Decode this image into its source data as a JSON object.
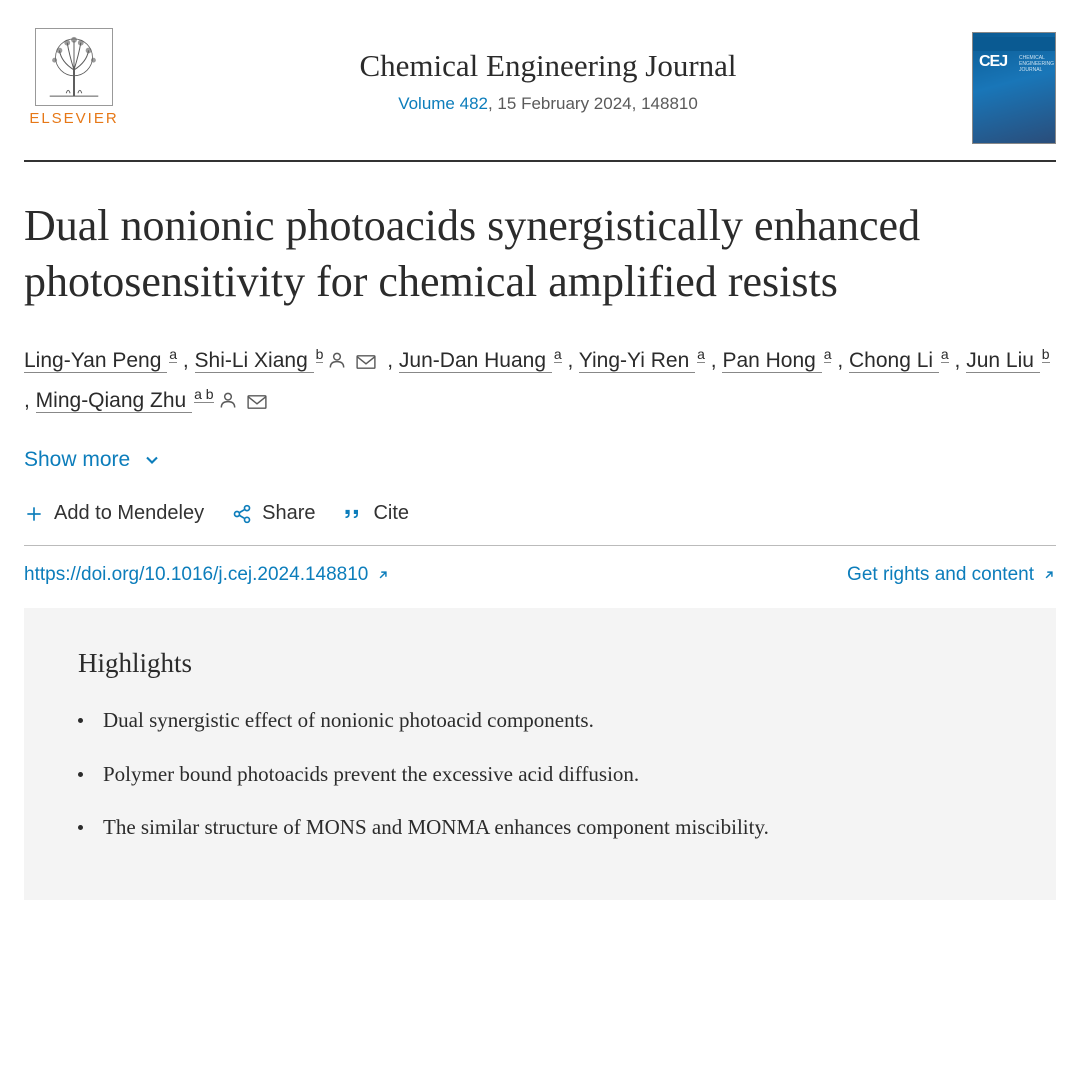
{
  "publisher": {
    "name": "ELSEVIER"
  },
  "journal": {
    "name": "Chemical Engineering Journal",
    "volume_label": "Volume 482",
    "date_article": ", 15 February 2024, 148810",
    "cover_code": "CEJ",
    "cover_sub": "CHEMICAL\nENGINEERING\nJOURNAL"
  },
  "article": {
    "title": "Dual nonionic photoacids synergistically enhanced photosensitivity for chemical amplified resists",
    "doi_url": "https://doi.org/10.1016/j.cej.2024.148810"
  },
  "authors": [
    {
      "name": "Ling-Yan Peng",
      "affil": "a",
      "person_icon": false,
      "mail_icon": false,
      "trailing_comma": true
    },
    {
      "name": "Shi-Li Xiang",
      "affil": "b",
      "person_icon": true,
      "mail_icon": true,
      "trailing_comma": true
    },
    {
      "name": "Jun-Dan Huang",
      "affil": "a",
      "person_icon": false,
      "mail_icon": false,
      "trailing_comma": true
    },
    {
      "name": "Ying-Yi Ren",
      "affil": "a",
      "person_icon": false,
      "mail_icon": false,
      "trailing_comma": true
    },
    {
      "name": "Pan Hong",
      "affil": "a",
      "person_icon": false,
      "mail_icon": false,
      "trailing_comma": true
    },
    {
      "name": "Chong Li",
      "affil": "a",
      "person_icon": false,
      "mail_icon": false,
      "trailing_comma": true
    },
    {
      "name": "Jun Liu",
      "affil": "b",
      "person_icon": false,
      "mail_icon": false,
      "trailing_comma": true
    },
    {
      "name": "Ming-Qiang Zhu",
      "affil": "a b",
      "person_icon": true,
      "mail_icon": true,
      "trailing_comma": false
    }
  ],
  "show_more_label": "Show more",
  "actions": {
    "mendeley": "Add to Mendeley",
    "share": "Share",
    "cite": "Cite"
  },
  "rights_label": "Get rights and content",
  "highlights": {
    "heading": "Highlights",
    "items": [
      "Dual synergistic effect of nonionic photoacid components.",
      "Polymer bound photoacids prevent the excessive acid diffusion.",
      "The similar structure of MONS and MONMA enhances component miscibility."
    ]
  },
  "colors": {
    "link": "#0c7dbb",
    "publisher_orange": "#e67817",
    "text": "#2b2b2b",
    "highlight_bg": "#f4f4f4"
  }
}
